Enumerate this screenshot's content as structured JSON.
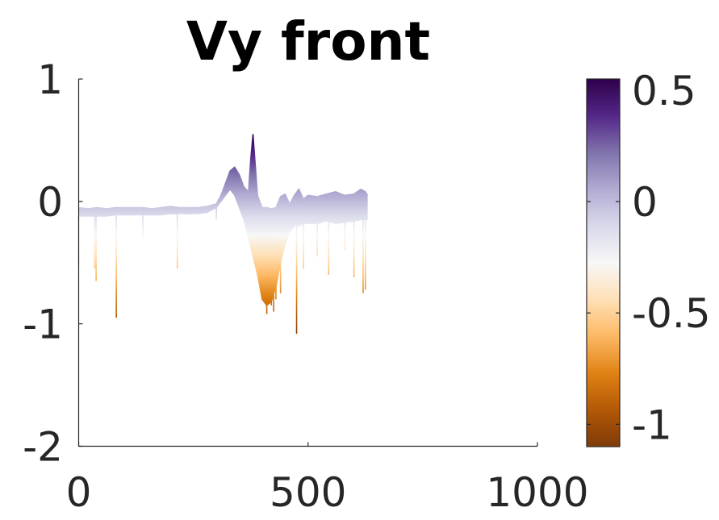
{
  "chart_data": {
    "type": "line",
    "title": "Vy front",
    "xlabel": "",
    "ylabel": "",
    "xlim": [
      0,
      1000
    ],
    "ylim": [
      -2,
      1
    ],
    "x_ticks": [
      "0",
      "500",
      "1000"
    ],
    "y_ticks": [
      "1",
      "0",
      "-1",
      "-2"
    ],
    "grid": false,
    "colormap": "PuOr",
    "colorbar": {
      "range": [
        -1.1,
        0.55
      ],
      "ticks": [
        "0.5",
        "0",
        "-0.5",
        "-1"
      ],
      "tick_values": [
        0.5,
        0,
        -0.5,
        -1
      ],
      "colors": [
        "#7f3b08",
        "#b35806",
        "#e08214",
        "#fdb863",
        "#fee0b6",
        "#f7f7f7",
        "#d8daeb",
        "#b2abd2",
        "#8073ac",
        "#542788",
        "#2d004b"
      ]
    },
    "series": [
      {
        "role": "upper envelope",
        "x": [
          0,
          20,
          40,
          60,
          80,
          100,
          120,
          140,
          160,
          180,
          200,
          220,
          240,
          260,
          280,
          300,
          310,
          320,
          330,
          340,
          350,
          360,
          370,
          375,
          380,
          390,
          400,
          410,
          420,
          430,
          440,
          450,
          460,
          470,
          480,
          490,
          500,
          520,
          540,
          560,
          580,
          600,
          615,
          625,
          630
        ],
        "y": [
          -0.05,
          -0.06,
          -0.05,
          -0.06,
          -0.05,
          -0.05,
          -0.05,
          -0.05,
          -0.06,
          -0.05,
          -0.04,
          -0.05,
          -0.05,
          -0.05,
          -0.04,
          -0.02,
          0.05,
          0.15,
          0.25,
          0.28,
          0.22,
          0.12,
          0.08,
          0.35,
          0.55,
          0.05,
          -0.05,
          -0.05,
          -0.06,
          -0.05,
          0.04,
          0.06,
          -0.02,
          0.05,
          0.1,
          0.02,
          0.05,
          0.04,
          0.06,
          0.08,
          0.05,
          0.06,
          0.1,
          0.08,
          0.05
        ]
      },
      {
        "role": "lower envelope",
        "x": [
          0,
          20,
          40,
          60,
          80,
          100,
          120,
          140,
          160,
          180,
          200,
          220,
          240,
          260,
          280,
          300,
          310,
          320,
          330,
          340,
          350,
          360,
          370,
          380,
          390,
          400,
          410,
          420,
          430,
          440,
          450,
          460,
          470,
          480,
          490,
          500,
          520,
          540,
          560,
          580,
          600,
          615,
          625,
          630
        ],
        "y": [
          -0.12,
          -0.12,
          -0.12,
          -0.12,
          -0.11,
          -0.11,
          -0.11,
          -0.11,
          -0.11,
          -0.11,
          -0.1,
          -0.1,
          -0.1,
          -0.1,
          -0.09,
          -0.05,
          0.0,
          0.05,
          0.1,
          0.05,
          -0.05,
          -0.15,
          -0.3,
          -0.45,
          -0.6,
          -0.8,
          -0.85,
          -0.82,
          -0.7,
          -0.5,
          -0.35,
          -0.25,
          -0.2,
          -0.2,
          -0.18,
          -0.18,
          -0.18,
          -0.16,
          -0.18,
          -0.17,
          -0.16,
          -0.15,
          -0.15,
          -0.15
        ]
      },
      {
        "role": "downward spikes",
        "x": [
          0,
          35,
          38,
          82,
          140,
          215,
          300,
          395,
          410,
          415,
          420,
          425,
          430,
          440,
          475,
          490,
          520,
          545,
          580,
          600,
          620,
          625
        ],
        "y": [
          -0.52,
          -0.55,
          -0.65,
          -0.95,
          -0.3,
          -0.55,
          -0.15,
          -0.7,
          -0.92,
          -0.6,
          -0.85,
          -0.9,
          -0.8,
          -0.75,
          -1.08,
          -0.55,
          -0.45,
          -0.6,
          -0.4,
          -0.62,
          -0.75,
          -0.72
        ]
      }
    ]
  }
}
